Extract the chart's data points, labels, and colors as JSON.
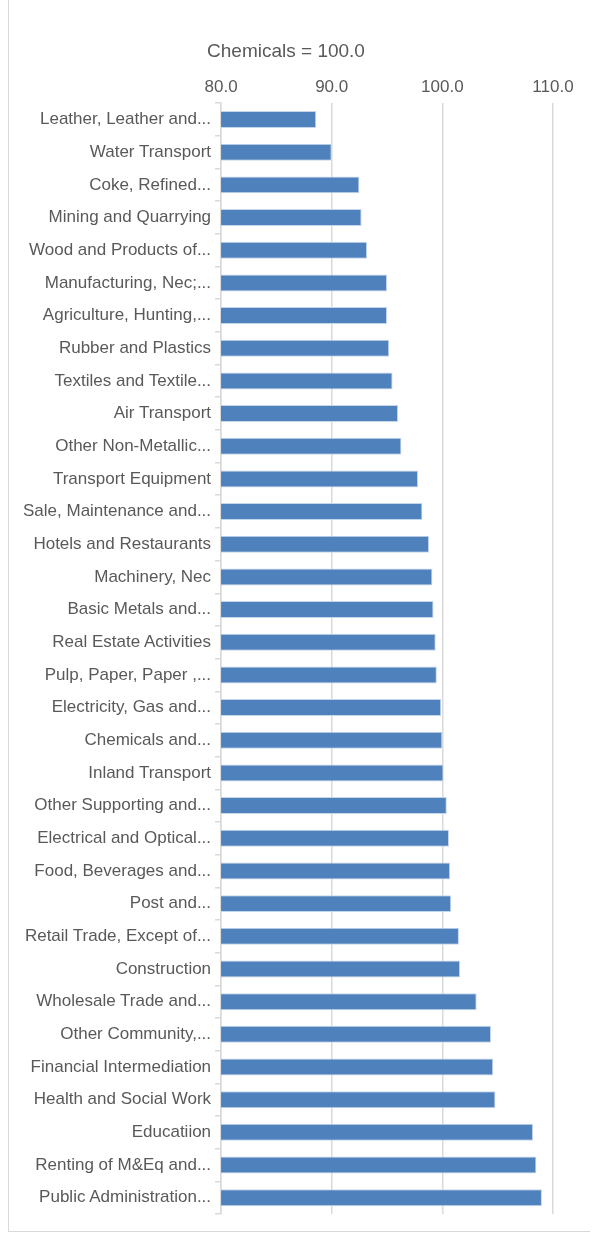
{
  "chart_data": {
    "type": "bar",
    "orientation": "horizontal",
    "title": "Chemicals = 100.0",
    "categories": [
      "Leather, Leather and...",
      "Water Transport",
      "Coke, Refined...",
      "Mining and Quarrying",
      "Wood and Products of...",
      "Manufacturing, Nec;...",
      "Agriculture, Hunting,...",
      "Rubber and Plastics",
      "Textiles and Textile...",
      "Air Transport",
      "Other Non-Metallic...",
      "Transport Equipment",
      "Sale, Maintenance and...",
      "Hotels and Restaurants",
      "Machinery, Nec",
      "Basic Metals and...",
      "Real Estate Activities",
      "Pulp, Paper, Paper ,...",
      "Electricity, Gas and...",
      "Chemicals and...",
      "Inland Transport",
      "Other Supporting and...",
      "Electrical and Optical...",
      "Food, Beverages and...",
      "Post and...",
      "Retail Trade, Except of...",
      "Construction",
      "Wholesale Trade and...",
      "Other Community,...",
      "Financial Intermediation",
      "Health and Social Work",
      "Educatiion",
      "Renting of M&Eq and...",
      "Public Administration..."
    ],
    "values": [
      88.6,
      90.0,
      92.5,
      92.7,
      93.2,
      95.0,
      95.0,
      95.2,
      95.5,
      96.0,
      96.3,
      97.8,
      98.2,
      98.8,
      99.1,
      99.2,
      99.4,
      99.5,
      99.9,
      100.0,
      100.1,
      100.4,
      100.6,
      100.7,
      100.8,
      101.5,
      101.6,
      103.1,
      104.4,
      104.6,
      104.8,
      108.2,
      108.5,
      109.0
    ],
    "color": "#4f81bd",
    "xlim": [
      80,
      110
    ],
    "xticks": [
      {
        "value": 80,
        "label": "80.0"
      },
      {
        "value": 90,
        "label": "90.0"
      },
      {
        "value": 100,
        "label": "100.0"
      },
      {
        "value": 110,
        "label": "110.0"
      }
    ],
    "grid": "x",
    "legend": false
  }
}
